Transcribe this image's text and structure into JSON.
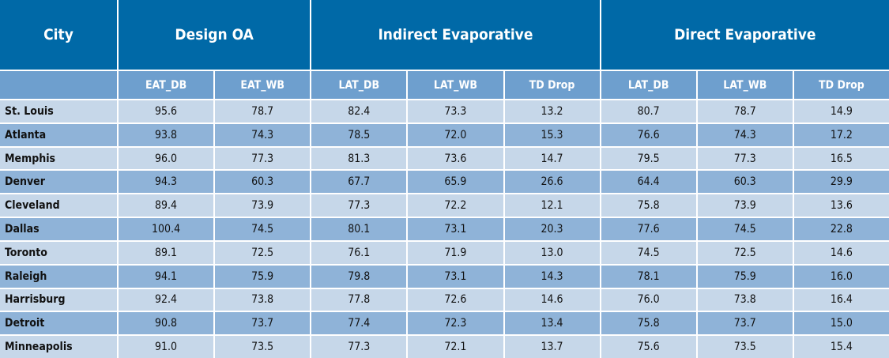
{
  "header": {
    "groups": [
      "City",
      "Design OA",
      "Indirect Evaporative",
      "Direct Evaporative"
    ],
    "subheaders": [
      "EAT_DB",
      "EAT_WB",
      "LAT_DB",
      "LAT_WB",
      "TD Drop",
      "LAT_DB",
      "LAT_WB",
      "TD Drop"
    ]
  },
  "table": {
    "rows": [
      [
        "St. Louis",
        "95.6",
        "78.7",
        "82.4",
        "73.3",
        "13.2",
        "80.7",
        "78.7",
        "14.9"
      ],
      [
        "Atlanta",
        "93.8",
        "74.3",
        "78.5",
        "72.0",
        "15.3",
        "76.6",
        "74.3",
        "17.2"
      ],
      [
        "Memphis",
        "96.0",
        "77.3",
        "81.3",
        "73.6",
        "14.7",
        "79.5",
        "77.3",
        "16.5"
      ],
      [
        "Denver",
        "94.3",
        "60.3",
        "67.7",
        "65.9",
        "26.6",
        "64.4",
        "60.3",
        "29.9"
      ],
      [
        "Cleveland",
        "89.4",
        "73.9",
        "77.3",
        "72.2",
        "12.1",
        "75.8",
        "73.9",
        "13.6"
      ],
      [
        "Dallas",
        "100.4",
        "74.5",
        "80.1",
        "73.1",
        "20.3",
        "77.6",
        "74.5",
        "22.8"
      ],
      [
        "Toronto",
        "89.1",
        "72.5",
        "76.1",
        "71.9",
        "13.0",
        "74.5",
        "72.5",
        "14.6"
      ],
      [
        "Raleigh",
        "94.1",
        "75.9",
        "79.8",
        "73.1",
        "14.3",
        "78.1",
        "75.9",
        "16.0"
      ],
      [
        "Harrisburg",
        "92.4",
        "73.8",
        "77.8",
        "72.6",
        "14.6",
        "76.0",
        "73.8",
        "16.4"
      ],
      [
        "Detroit",
        "90.8",
        "73.7",
        "77.4",
        "72.3",
        "13.4",
        "75.8",
        "73.7",
        "15.0"
      ],
      [
        "Minneapolis",
        "91.0",
        "73.5",
        "77.3",
        "72.1",
        "13.7",
        "75.6",
        "73.5",
        "15.4"
      ]
    ]
  }
}
